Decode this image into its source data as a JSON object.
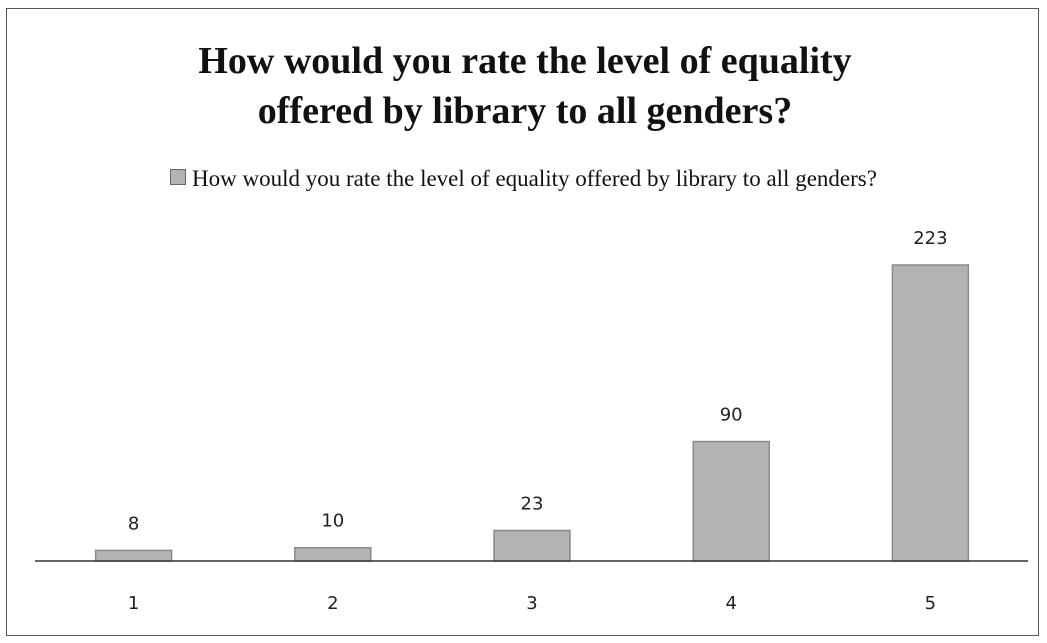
{
  "chart_data": {
    "type": "bar",
    "title": "How would you rate the level of equality offered by library to all genders?",
    "categories": [
      "1",
      "2",
      "3",
      "4",
      "5"
    ],
    "series": [
      {
        "name": "How would you rate the level of equality offered by library to all genders?",
        "color": "#b3b3b3",
        "values": [
          8,
          10,
          23,
          90,
          223
        ]
      }
    ],
    "legend": "top"
  }
}
